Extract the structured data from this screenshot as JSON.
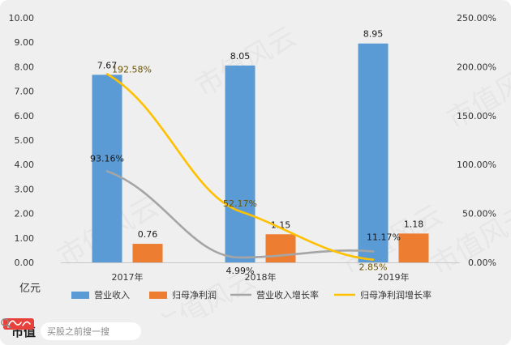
{
  "chart_data": {
    "type": "bar",
    "categories": [
      "2017年",
      "2018年",
      "2019年"
    ],
    "y_unit_label": "亿元",
    "y_left": {
      "ticks": [
        "0.00",
        "1.00",
        "2.00",
        "3.00",
        "4.00",
        "5.00",
        "6.00",
        "7.00",
        "8.00",
        "9.00",
        "10.00"
      ],
      "ylim": [
        0,
        10
      ]
    },
    "y_right": {
      "ticks": [
        "0.00%",
        "50.00%",
        "100.00%",
        "150.00%",
        "200.00%",
        "250.00%"
      ],
      "ylim": [
        0,
        250
      ]
    },
    "bar_series": [
      {
        "name": "营业收入",
        "color": "#5b9bd5",
        "values": [
          7.67,
          8.05,
          8.95
        ],
        "labels": [
          "7.67",
          "8.05",
          "8.95"
        ]
      },
      {
        "name": "归母净利润",
        "color": "#ed7d31",
        "values": [
          0.76,
          1.15,
          1.18
        ],
        "labels": [
          "0.76",
          "1.15",
          "1.18"
        ]
      }
    ],
    "line_series": [
      {
        "name": "营业收入增长率",
        "color": "#a5a5a5",
        "values": [
          93.16,
          4.99,
          11.17
        ],
        "labels": [
          "93.16%",
          "4.99%",
          "11.17%"
        ],
        "label_color": "#1a1a1a"
      },
      {
        "name": "归母净利润增长率",
        "color": "#ffc000",
        "values": [
          192.58,
          52.17,
          2.85
        ],
        "labels": [
          "192.58%",
          "52.17%",
          "2.85%"
        ],
        "label_color": "#6b5200"
      }
    ],
    "grid": false,
    "legend_position": "bottom"
  },
  "watermark": "市值风云",
  "footer": {
    "brand_text": "市值",
    "logo_icon": "fengyun-logo-icon",
    "search_icon": "search-icon",
    "search_placeholder": "买股之前搜一搜"
  }
}
